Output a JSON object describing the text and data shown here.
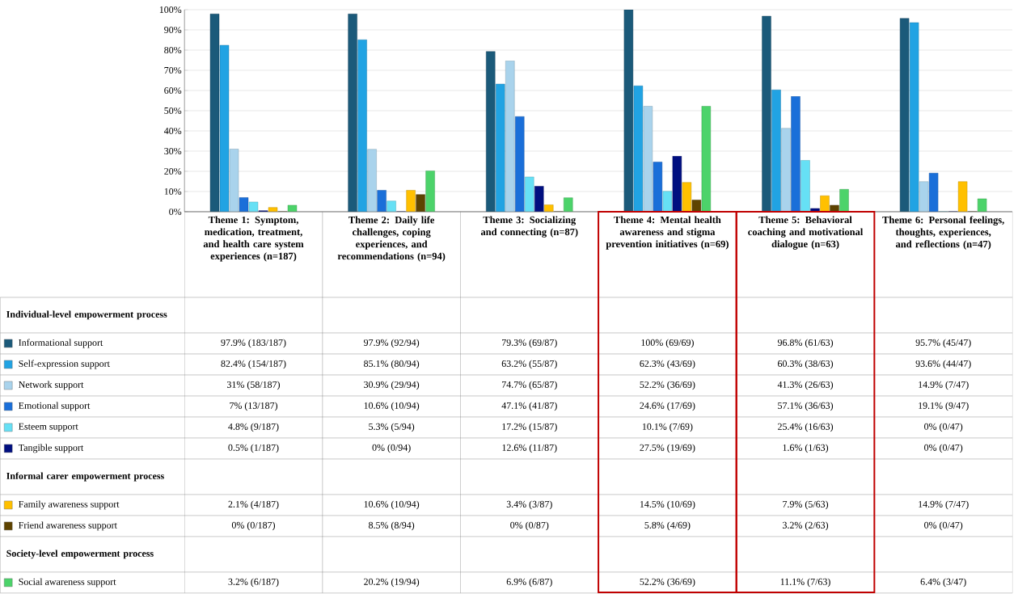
{
  "chart_data": {
    "type": "bar",
    "categories": [
      "Theme 1: Symptom, medication, treatment, and health care system experiences (n=187)",
      "Theme 2: Daily life challenges, coping experiences, and recommendations (n=94)",
      "Theme 3: Socializing and connecting (n=87)",
      "Theme 4: Mental health awareness and stigma prevention initiatives (n=69)",
      "Theme 5: Behavioral coaching and motivational dialogue (n=63)",
      "Theme 6: Personal feelings, thoughts, experiences, and reflections (n=47)"
    ],
    "series": [
      {
        "name": "Informational support",
        "color": "#1b5a7a",
        "values": [
          97.9,
          97.9,
          79.3,
          100,
          96.8,
          95.7
        ],
        "value_labels": [
          "97.9% (183/187)",
          "97.9% (92/94)",
          "79.3% (69/87)",
          "100% (69/69)",
          "96.8% (61/63)",
          "95.7% (45/47)"
        ]
      },
      {
        "name": "Self-expression support",
        "color": "#21a3e3",
        "values": [
          82.4,
          85.1,
          63.2,
          62.3,
          60.3,
          93.6
        ],
        "value_labels": [
          "82.4% (154/187)",
          "85.1% (80/94)",
          "63.2% (55/87)",
          "62.3% (43/69)",
          "60.3% (38/63)",
          "93.6% (44/47)"
        ]
      },
      {
        "name": "Network support",
        "color": "#a9d3ec",
        "values": [
          31,
          30.9,
          74.7,
          52.2,
          41.3,
          14.9
        ],
        "value_labels": [
          "31% (58/187)",
          "30.9% (29/94)",
          "74.7% (65/87)",
          "52.2% (36/69)",
          "41.3% (26/63)",
          "14.9% (7/47)"
        ]
      },
      {
        "name": "Emotional support",
        "color": "#1a6fd9",
        "values": [
          7,
          10.6,
          47.1,
          24.6,
          57.1,
          19.1
        ],
        "value_labels": [
          "7% (13/187)",
          "10.6% (10/94)",
          "47.1% (41/87)",
          "24.6% (17/69)",
          "57.1% (36/63)",
          "19.1% (9/47)"
        ]
      },
      {
        "name": "Esteem support",
        "color": "#66e0f5",
        "values": [
          4.8,
          5.3,
          17.2,
          10.1,
          25.4,
          0
        ],
        "value_labels": [
          "4.8% (9/187)",
          "5.3% (5/94)",
          "17.2% (15/87)",
          "10.1% (7/69)",
          "25.4% (16/63)",
          "0% (0/47)"
        ]
      },
      {
        "name": "Tangible support",
        "color": "#000f80",
        "values": [
          0.5,
          0,
          12.6,
          27.5,
          1.6,
          0
        ],
        "value_labels": [
          "0.5% (1/187)",
          "0% (0/94)",
          "12.6% (11/87)",
          "27.5% (19/69)",
          "1.6% (1/63)",
          "0% (0/47)"
        ]
      },
      {
        "name": "Family awareness support",
        "color": "#ffc000",
        "values": [
          2.1,
          10.6,
          3.4,
          14.5,
          7.9,
          14.9
        ],
        "value_labels": [
          "2.1% (4/187)",
          "10.6% (10/94)",
          "3.4% (3/87)",
          "14.5% (10/69)",
          "7.9% (5/63)",
          "14.9% (7/47)"
        ]
      },
      {
        "name": "Friend awareness support",
        "color": "#5e4300",
        "values": [
          0,
          8.5,
          0,
          5.8,
          3.2,
          0
        ],
        "value_labels": [
          "0% (0/187)",
          "8.5% (8/94)",
          "0% (0/87)",
          "5.8% (4/69)",
          "3.2% (2/63)",
          "0% (0/47)"
        ]
      },
      {
        "name": "Social awareness support",
        "color": "#4cd36a",
        "values": [
          3.2,
          20.2,
          6.9,
          52.2,
          11.1,
          6.4
        ],
        "value_labels": [
          "3.2% (6/187)",
          "20.2% (19/94)",
          "6.9% (6/87)",
          "52.2% (36/69)",
          "11.1% (7/63)",
          "6.4% (3/47)"
        ]
      }
    ],
    "annotations": [
      "Individual-level empowerment process",
      "Informal carer empowerment process",
      "Society-level empowerment process"
    ],
    "ylim": [
      0,
      100
    ],
    "yticks": [
      {
        "value": 0,
        "label": "0%"
      },
      {
        "value": 10,
        "label": "10%"
      },
      {
        "value": 20,
        "label": "20%"
      },
      {
        "value": 30,
        "label": "30%"
      },
      {
        "value": 40,
        "label": "40%"
      },
      {
        "value": 50,
        "label": "50%"
      },
      {
        "value": 60,
        "label": "60%"
      },
      {
        "value": 70,
        "label": "70%"
      },
      {
        "value": 80,
        "label": "80%"
      },
      {
        "value": 90,
        "label": "90%"
      },
      {
        "value": 100,
        "label": "100%"
      }
    ],
    "grid": "y",
    "legend": "left"
  }
}
